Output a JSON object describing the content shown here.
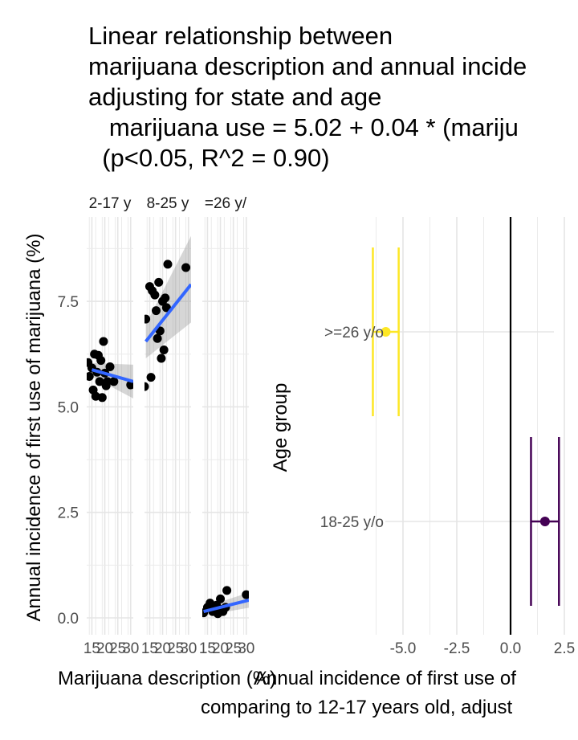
{
  "title_lines": [
    "Linear relationship between",
    "marijuana description and annual incide",
    "adjusting for state and age",
    "   marijuana use = 5.02 + 0.04 * (mariju",
    "  (p<0.05, R^2 = 0.90)"
  ],
  "chart_data": [
    {
      "type": "scatter",
      "facets": [
        "2-17 y",
        "8-25 y",
        "=26 y/"
      ],
      "xlabel": "Marijuana description (%)",
      "ylabel": "Annual incidence of first use of marijuana (%)",
      "x_tick_labels": [
        "15",
        "20",
        "25",
        "30"
      ],
      "y_ticks": [
        0.0,
        2.5,
        5.0,
        7.5
      ],
      "y_tick_labels": [
        "0.0",
        "2.5",
        "5.0",
        "7.5"
      ],
      "xlim": [
        13,
        31
      ],
      "ylim": [
        -0.4,
        9.5
      ],
      "point_color": "#000000",
      "line_color": "#3366FF",
      "band_color": "#999999",
      "panels": [
        {
          "facet": "2-17 y",
          "points": [
            [
              13.5,
              6.05
            ],
            [
              14,
              5.72
            ],
            [
              15,
              5.92
            ],
            [
              15.5,
              5.4
            ],
            [
              16,
              6.25
            ],
            [
              16.5,
              5.25
            ],
            [
              17,
              5.82
            ],
            [
              17.5,
              6.22
            ],
            [
              18,
              5.6
            ],
            [
              18.5,
              6.1
            ],
            [
              19,
              5.22
            ],
            [
              19.5,
              6.55
            ],
            [
              20,
              5.8
            ],
            [
              20.5,
              5.5
            ],
            [
              21,
              5.6
            ],
            [
              22,
              5.95
            ],
            [
              23.5,
              5.6
            ],
            [
              30,
              5.52
            ]
          ],
          "fit": {
            "x": [
              15,
              31
            ],
            "y": [
              5.88,
              5.6
            ],
            "band_lo": [
              5.72,
              5.2
            ],
            "band_hi": [
              6.04,
              6.0
            ]
          }
        },
        {
          "facet": "8-25 y",
          "points": [
            [
              13,
              5.48
            ],
            [
              13.5,
              7.08
            ],
            [
              15,
              7.85
            ],
            [
              15.5,
              5.7
            ],
            [
              16,
              7.75
            ],
            [
              17,
              7.65
            ],
            [
              17.5,
              7.28
            ],
            [
              18,
              6.62
            ],
            [
              18.5,
              7.95
            ],
            [
              19,
              6.8
            ],
            [
              19.5,
              6.15
            ],
            [
              20,
              7.5
            ],
            [
              20.5,
              6.35
            ],
            [
              21,
              7.58
            ],
            [
              21.5,
              7.35
            ],
            [
              22,
              8.38
            ],
            [
              29,
              8.3
            ]
          ],
          "fit": {
            "x": [
              13.5,
              31
            ],
            "y": [
              6.55,
              7.9
            ],
            "band_lo": [
              6.15,
              7.0
            ],
            "band_hi": [
              6.95,
              9.05
            ]
          }
        },
        {
          "facet": "=26 y/",
          "points": [
            [
              13.5,
              0.12
            ],
            [
              15,
              0.25
            ],
            [
              16,
              0.35
            ],
            [
              17,
              0.15
            ],
            [
              18,
              0.2
            ],
            [
              18.5,
              0.3
            ],
            [
              19,
              0.1
            ],
            [
              20,
              0.45
            ],
            [
              20.5,
              0.2
            ],
            [
              21,
              0.15
            ],
            [
              22,
              0.25
            ],
            [
              22.5,
              0.65
            ],
            [
              30,
              0.55
            ]
          ],
          "fit": {
            "x": [
              13.5,
              31
            ],
            "y": [
              0.15,
              0.42
            ],
            "band_lo": [
              0.05,
              0.24
            ],
            "band_hi": [
              0.25,
              0.6
            ]
          }
        }
      ]
    },
    {
      "type": "scatter",
      "subtype": "coefficient-plot",
      "xlabel": "Annual incidence of first use of",
      "xlabel_line2": "comparing to 12-17 years old, adjust",
      "ylabel": "Age group",
      "categories": [
        ">=26 y/o",
        "18-25 y/o"
      ],
      "x_ticks": [
        -5.0,
        -2.5,
        0.0,
        2.5
      ],
      "x_tick_labels": [
        "-5.0",
        "-2.5",
        "0.0",
        "2.5"
      ],
      "xlim": [
        -7.0,
        5.0
      ],
      "reference_line": 0.0,
      "estimates": [
        {
          "group": ">=26 y/o",
          "value": -5.8,
          "ci_low": -6.4,
          "ci_high": -5.2,
          "color": "#FDE725"
        },
        {
          "group": "18-25 y/o",
          "value": 1.6,
          "ci_low": 0.95,
          "ci_high": 2.25,
          "color": "#440154"
        }
      ]
    }
  ]
}
